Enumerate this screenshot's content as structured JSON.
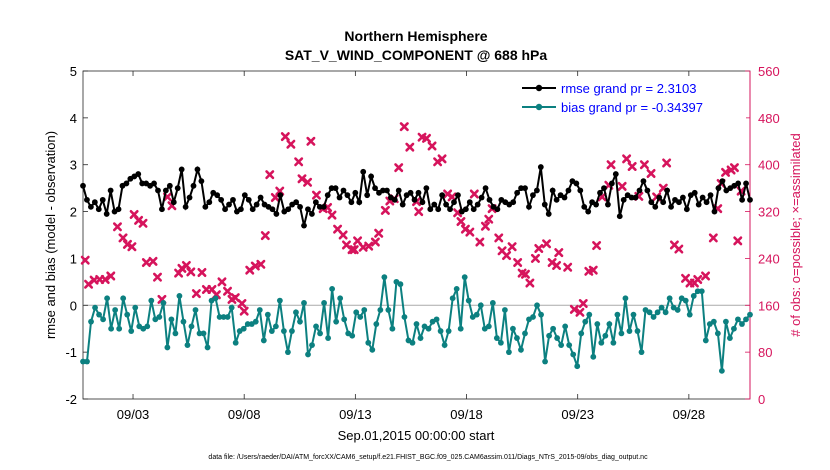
{
  "chart_data": {
    "type": "line",
    "title": "Northern Hemisphere",
    "subtitle": "SAT_V_WIND_COMPONENT @ 688 hPa",
    "xlabel": "Sep.01,2015 00:00:00 start",
    "ylabel": "rmse and bias (model - observation)",
    "y2label": "# of obs: o=possible; ×=assimilated",
    "ylim": [
      -2,
      5
    ],
    "y2lim": [
      0,
      560
    ],
    "xlim": [
      0.75,
      30.75
    ],
    "yticks": [
      -2,
      -1,
      0,
      1,
      2,
      3,
      4,
      5
    ],
    "y2ticks": [
      0,
      80,
      160,
      240,
      320,
      400,
      480,
      560
    ],
    "xticks": [
      3,
      8,
      13,
      18,
      23,
      28
    ],
    "xticklabels": [
      "09/03",
      "09/08",
      "09/13",
      "09/18",
      "09/23",
      "09/28"
    ],
    "footnote": "data file: /Users/raeder/DAI/ATM_forcXX/CAM6_setup/f.e21.FHIST_BGC.f09_025.CAM6assim.011/Diags_NTrS_2015-09/obs_diag_output.nc",
    "colors": {
      "rmse": "#000000",
      "bias": "#0c8080",
      "obs": "#d6145c",
      "zero": "#aaaaaa"
    },
    "series": [
      {
        "name": "rmse",
        "legend": "rmse grand pr = 2.3103",
        "values": [
          2.55,
          2.25,
          2.1,
          2.2,
          2.05,
          2.25,
          1.95,
          2.45,
          2.0,
          2.05,
          2.55,
          2.6,
          2.7,
          2.75,
          2.8,
          2.6,
          2.6,
          2.55,
          2.6,
          2.45,
          2.05,
          2.45,
          2.55,
          2.2,
          2.5,
          2.9,
          2.1,
          2.3,
          2.55,
          2.9,
          2.65,
          2.1,
          2.2,
          2.4,
          2.35,
          2.25,
          2.05,
          2.15,
          2.25,
          2.0,
          2.05,
          2.35,
          2.25,
          2.05,
          2.15,
          2.3,
          2.15,
          2.1,
          2.05,
          1.95,
          2.35,
          2.0,
          2.05,
          2.15,
          2.2,
          2.1,
          1.7,
          2.05,
          1.95,
          2.2,
          2.1,
          2.1,
          2.35,
          2.5,
          2.5,
          2.3,
          2.45,
          2.35,
          2.2,
          2.4,
          2.2,
          2.85,
          2.35,
          2.75,
          2.5,
          2.4,
          2.45,
          2.45,
          2.3,
          2.25,
          2.45,
          2.15,
          2.35,
          2.4,
          2.25,
          2.4,
          2.2,
          2.5,
          2.05,
          2.15,
          2.05,
          2.35,
          2.15,
          2.05,
          2.2,
          2.35,
          2.0,
          2.05,
          2.2,
          2.05,
          2.15,
          2.3,
          2.5,
          2.25,
          2.1,
          2.05,
          2.25,
          2.2,
          2.15,
          2.2,
          2.4,
          2.5,
          2.5,
          2.1,
          2.35,
          2.45,
          2.95,
          2.15,
          1.95,
          2.45,
          2.25,
          2.35,
          2.3,
          2.45,
          2.65,
          2.6,
          2.45,
          2.1,
          2.0,
          2.2,
          2.15,
          2.4,
          2.5,
          2.15,
          2.6,
          2.8,
          1.9,
          2.25,
          2.35,
          2.3,
          2.3,
          2.45,
          2.65,
          2.45,
          2.2,
          2.1,
          2.3,
          2.2,
          2.45,
          2.1,
          2.25,
          2.2,
          2.3,
          2.05,
          2.35,
          2.4,
          2.15,
          2.3,
          2.2,
          2.35,
          2.0,
          2.5,
          2.65,
          2.45,
          2.5,
          2.55,
          2.6,
          2.25,
          2.6,
          2.25
        ]
      },
      {
        "name": "bias",
        "legend": "bias grand pr = -0.34397",
        "values": [
          -1.2,
          -1.2,
          -0.35,
          -0.05,
          -0.2,
          -0.3,
          0.15,
          -0.5,
          -0.1,
          -0.5,
          0.15,
          -0.2,
          -0.55,
          -0.05,
          -0.45,
          -0.5,
          -0.45,
          0.1,
          -0.3,
          -0.25,
          0.05,
          -0.9,
          -0.3,
          -0.6,
          0.2,
          -0.35,
          -0.85,
          -0.45,
          -0.1,
          -0.6,
          -0.6,
          -0.9,
          0.1,
          0.15,
          -0.25,
          -0.25,
          -0.25,
          -0.05,
          -0.8,
          -0.55,
          -0.5,
          -0.4,
          -0.4,
          -0.35,
          -0.1,
          -0.75,
          -0.2,
          -0.55,
          -0.45,
          0.1,
          -0.55,
          -1.0,
          -0.55,
          -0.15,
          -0.35,
          0.05,
          -1.05,
          -0.85,
          -0.45,
          -0.6,
          0.05,
          -0.7,
          0.35,
          -0.35,
          0.15,
          -0.3,
          -0.6,
          -0.65,
          -0.15,
          -0.25,
          -0.1,
          -0.8,
          -0.95,
          -0.4,
          -0.1,
          0.6,
          -0.1,
          -0.5,
          0.5,
          0.45,
          -0.25,
          -0.75,
          -0.8,
          -0.4,
          -0.7,
          -0.45,
          -0.5,
          -0.35,
          -0.3,
          -0.55,
          -0.85,
          -0.55,
          0.15,
          0.35,
          -0.5,
          0.6,
          0.1,
          -0.25,
          -0.2,
          0.0,
          -0.5,
          -0.45,
          0.05,
          -0.7,
          -0.8,
          -0.1,
          -1.0,
          -0.5,
          -0.7,
          -0.95,
          -0.6,
          -0.3,
          -0.25,
          0.0,
          -0.2,
          -1.2,
          -0.65,
          -0.5,
          -0.7,
          -0.85,
          -0.45,
          -0.85,
          -1.05,
          -1.3,
          -0.6,
          -0.35,
          -0.2,
          -1.1,
          -0.4,
          -0.8,
          -0.65,
          -0.4,
          -0.8,
          -0.2,
          -0.6,
          0.15,
          -0.55,
          -0.2,
          -0.55,
          -1.0,
          -0.1,
          -0.15,
          -0.25,
          -0.15,
          -0.05,
          -0.15,
          0.15,
          -0.05,
          -0.1,
          0.15,
          0.1,
          -0.2,
          0.2,
          0.3,
          0.3,
          -0.75,
          -0.4,
          -0.35,
          -0.6,
          -1.4,
          -0.35,
          -0.7,
          -0.5,
          -0.3,
          -0.4,
          -0.3,
          -0.2
        ]
      },
      {
        "name": "obs-assimilated",
        "marker": "x",
        "values": [
          [
            0.85,
            237
          ],
          [
            1.0,
            196
          ],
          [
            1.25,
            203
          ],
          [
            1.5,
            204
          ],
          [
            1.75,
            204
          ],
          [
            2.0,
            210
          ],
          [
            2.3,
            294
          ],
          [
            2.55,
            275
          ],
          [
            2.75,
            264
          ],
          [
            2.95,
            260
          ],
          [
            3.05,
            315
          ],
          [
            3.25,
            305
          ],
          [
            3.45,
            300
          ],
          [
            3.6,
            233
          ],
          [
            3.9,
            235
          ],
          [
            4.1,
            208
          ],
          [
            4.3,
            170
          ],
          [
            4.55,
            345
          ],
          [
            4.75,
            330
          ],
          [
            5.05,
            215
          ],
          [
            5.2,
            223
          ],
          [
            5.4,
            228
          ],
          [
            5.6,
            217
          ],
          [
            5.85,
            180
          ],
          [
            6.1,
            216
          ],
          [
            6.3,
            187
          ],
          [
            6.55,
            187
          ],
          [
            6.75,
            178
          ],
          [
            7.0,
            200
          ],
          [
            7.25,
            184
          ],
          [
            7.45,
            170
          ],
          [
            7.6,
            173
          ],
          [
            7.9,
            163
          ],
          [
            8.0,
            150
          ],
          [
            8.25,
            220
          ],
          [
            8.5,
            227
          ],
          [
            8.75,
            230
          ],
          [
            8.95,
            279
          ],
          [
            9.15,
            383
          ],
          [
            9.4,
            344
          ],
          [
            9.6,
            355
          ],
          [
            9.85,
            448
          ],
          [
            10.1,
            435
          ],
          [
            10.45,
            405
          ],
          [
            10.6,
            376
          ],
          [
            10.85,
            370
          ],
          [
            11.0,
            440
          ],
          [
            11.25,
            348
          ],
          [
            11.55,
            325
          ],
          [
            11.75,
            327
          ],
          [
            11.95,
            314
          ],
          [
            12.2,
            290
          ],
          [
            12.45,
            280
          ],
          [
            12.6,
            263
          ],
          [
            12.85,
            255
          ],
          [
            12.95,
            255
          ],
          [
            13.1,
            270
          ],
          [
            13.35,
            259
          ],
          [
            13.6,
            261
          ],
          [
            13.9,
            268
          ],
          [
            14.05,
            283
          ],
          [
            14.35,
            322
          ],
          [
            14.55,
            338
          ],
          [
            14.75,
            342
          ],
          [
            14.95,
            395
          ],
          [
            15.2,
            465
          ],
          [
            15.45,
            430
          ],
          [
            15.75,
            337
          ],
          [
            15.85,
            320
          ],
          [
            16.0,
            447
          ],
          [
            16.2,
            445
          ],
          [
            16.45,
            432
          ],
          [
            16.7,
            405
          ],
          [
            16.9,
            410
          ],
          [
            17.15,
            350
          ],
          [
            17.35,
            345
          ],
          [
            17.6,
            318
          ],
          [
            17.75,
            303
          ],
          [
            17.95,
            290
          ],
          [
            18.15,
            285
          ],
          [
            18.35,
            350
          ],
          [
            18.6,
            268
          ],
          [
            18.85,
            295
          ],
          [
            19.0,
            307
          ],
          [
            19.15,
            325
          ],
          [
            19.45,
            275
          ],
          [
            19.6,
            253
          ],
          [
            19.8,
            245
          ],
          [
            20.05,
            260
          ],
          [
            20.3,
            233
          ],
          [
            20.5,
            215
          ],
          [
            20.65,
            213
          ],
          [
            20.85,
            198
          ],
          [
            21.1,
            240
          ],
          [
            21.25,
            257
          ],
          [
            21.6,
            265
          ],
          [
            21.85,
            233
          ],
          [
            22.05,
            228
          ],
          [
            22.15,
            250
          ],
          [
            22.55,
            225
          ],
          [
            22.85,
            153
          ],
          [
            23.1,
            148
          ],
          [
            23.25,
            163
          ],
          [
            23.5,
            218
          ],
          [
            23.7,
            220
          ],
          [
            23.85,
            262
          ],
          [
            24.1,
            345
          ],
          [
            24.4,
            365
          ],
          [
            24.5,
            400
          ],
          [
            24.75,
            490
          ],
          [
            25.0,
            363
          ],
          [
            25.2,
            410
          ],
          [
            25.45,
            397
          ],
          [
            25.75,
            346
          ],
          [
            26.0,
            400
          ],
          [
            26.3,
            385
          ],
          [
            26.55,
            345
          ],
          [
            26.85,
            360
          ],
          [
            27.0,
            403
          ],
          [
            27.35,
            263
          ],
          [
            27.55,
            256
          ],
          [
            27.85,
            206
          ],
          [
            28.05,
            198
          ],
          [
            28.25,
            198
          ],
          [
            28.4,
            204
          ],
          [
            28.75,
            210
          ],
          [
            29.1,
            275
          ],
          [
            29.3,
            325
          ],
          [
            29.45,
            368
          ],
          [
            29.65,
            387
          ],
          [
            29.9,
            391
          ],
          [
            30.05,
            395
          ],
          [
            30.2,
            270
          ],
          [
            30.35,
            355
          ]
        ]
      }
    ]
  }
}
